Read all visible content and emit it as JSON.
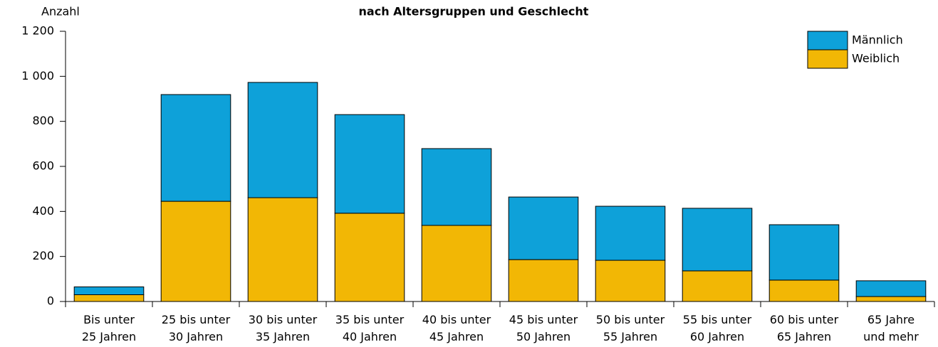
{
  "chart_data": {
    "type": "stacked_bar",
    "title": "nach Altersgruppen und Geschlecht",
    "y_label": "Anzahl",
    "categories": [
      "Bis unter\n25 Jahren",
      "25 bis unter\n30 Jahren",
      "30 bis unter\n35 Jahren",
      "35 bis unter\n40 Jahren",
      "40 bis unter\n45 Jahren",
      "45 bis unter\n50 Jahren",
      "50 bis unter\n55 Jahren",
      "55 bis unter\n60 Jahren",
      "60 bis unter\n65 Jahren",
      "65 Jahre\nund mehr"
    ],
    "series": [
      {
        "name": "Weiblich",
        "color": "#f2b705",
        "values": [
          30,
          445,
          461,
          392,
          338,
          186,
          183,
          136,
          95,
          22
        ]
      },
      {
        "name": "Männlich",
        "color": "#0ea1d9",
        "values": [
          35,
          474,
          512,
          438,
          341,
          278,
          240,
          278,
          246,
          70
        ]
      }
    ],
    "ylim": [
      0,
      1200
    ],
    "yticks": [
      0,
      200,
      400,
      600,
      800,
      {
        "value": 1000,
        "label": "1 000"
      },
      {
        "value": 1200,
        "label": "1 200"
      }
    ],
    "legend": "top-right"
  }
}
